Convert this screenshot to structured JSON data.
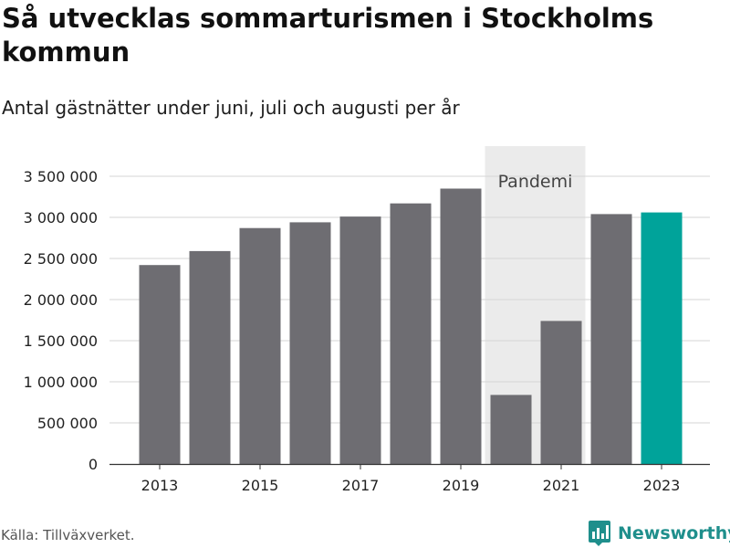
{
  "title": "Så utvecklas sommarturismen i Stockholms kommun",
  "subtitle": "Antal gästnätter under juni, juli och augusti per år",
  "source": "Källa: Tillväxverket.",
  "brand": "Newsworthy",
  "icons": {
    "brand_logo": "bar-chart-speech-bubble-icon"
  },
  "colors": {
    "bar": "#6e6d72",
    "highlight": "#00a39a",
    "pandemic_band": "#ebebeb",
    "grid": "#d6d6d6",
    "brand": "#1f8f8c"
  },
  "chart_data": {
    "type": "bar",
    "categories": [
      2013,
      2014,
      2015,
      2016,
      2017,
      2018,
      2019,
      2020,
      2021,
      2022,
      2023
    ],
    "values": [
      2420000,
      2590000,
      2870000,
      2940000,
      3010000,
      3170000,
      3350000,
      840000,
      1740000,
      3040000,
      3060000
    ],
    "highlight_category": 2023,
    "ylim": [
      0,
      3500000
    ],
    "yticks": [
      0,
      500000,
      1000000,
      1500000,
      2000000,
      2500000,
      3000000,
      3500000
    ],
    "ytick_labels": [
      "0",
      "500 000",
      "1 000 000",
      "1 500 000",
      "2 000 000",
      "2 500 000",
      "3 000 000",
      "3 500 000"
    ],
    "xticks": [
      2013,
      2015,
      2017,
      2019,
      2021,
      2023
    ],
    "xtick_labels": [
      "2013",
      "2015",
      "2017",
      "2019",
      "2021",
      "2023"
    ],
    "xlabel": "",
    "ylabel": "",
    "grid": true,
    "annotation": {
      "text": "Pandemi",
      "from": 2020,
      "to": 2021
    }
  }
}
